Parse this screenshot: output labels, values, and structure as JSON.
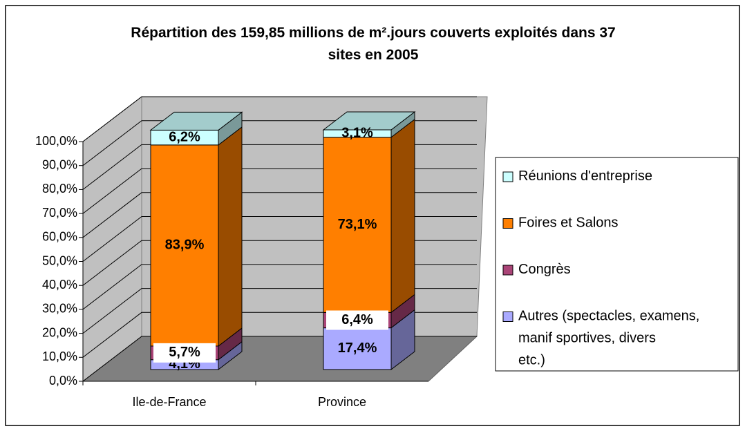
{
  "chart_data": {
    "type": "bar3d_stacked",
    "title": "Répartition des 159,85 millions de m².jours couverts exploités dans 37 sites en 2005",
    "categories": [
      "Ile-de-France",
      "Province"
    ],
    "series": [
      {
        "name": "Autres (spectacles, examens, manif sportives, divers etc.)",
        "color": "#aaaaff",
        "values": [
          4.1,
          17.4
        ],
        "value_labels": [
          "4,1%",
          "17,4%"
        ]
      },
      {
        "name": "Congrès",
        "color": "#aa4477",
        "values": [
          5.7,
          6.4
        ],
        "value_labels": [
          "5,7%",
          "6,4%"
        ]
      },
      {
        "name": "Foires et Salons",
        "color": "#ff7f00",
        "values": [
          83.9,
          73.1
        ],
        "value_labels": [
          "83,9%",
          "73,1%"
        ]
      },
      {
        "name": "Réunions d'entreprise",
        "color": "#ccffff",
        "values": [
          6.2,
          3.1
        ],
        "value_labels": [
          "6,2%",
          "3,1%"
        ]
      }
    ],
    "ylim": [
      0,
      100
    ],
    "yticks": [
      {
        "value": 0,
        "label": "0,0%"
      },
      {
        "value": 10,
        "label": "10,0%"
      },
      {
        "value": 20,
        "label": "20,0%"
      },
      {
        "value": 30,
        "label": "30,0%"
      },
      {
        "value": 40,
        "label": "40,0%"
      },
      {
        "value": 50,
        "label": "50,0%"
      },
      {
        "value": 60,
        "label": "60,0%"
      },
      {
        "value": 70,
        "label": "70,0%"
      },
      {
        "value": 80,
        "label": "80,0%"
      },
      {
        "value": 90,
        "label": "90,0%"
      },
      {
        "value": 100,
        "label": "100,0%"
      }
    ],
    "grid": true,
    "legend": "right"
  }
}
